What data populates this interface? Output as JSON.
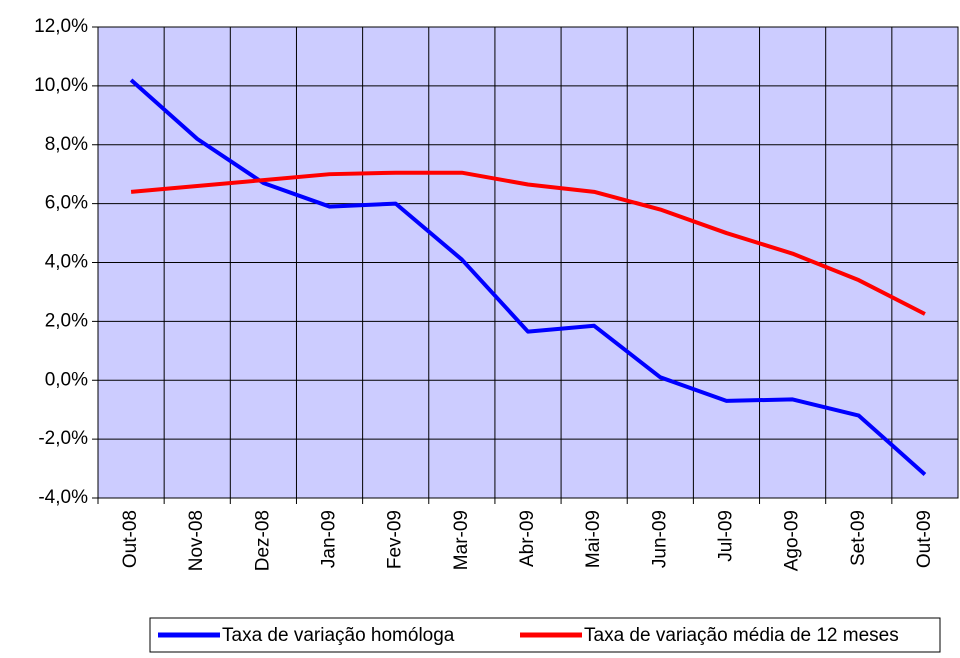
{
  "chart_data": {
    "type": "line",
    "categories": [
      "Out-08",
      "Nov-08",
      "Dez-08",
      "Jan-09",
      "Fev-09",
      "Mar-09",
      "Abr-09",
      "Mai-09",
      "Jun-09",
      "Jul-09",
      "Ago-09",
      "Set-09",
      "Out-09"
    ],
    "series": [
      {
        "name": "Taxa de variação homóloga",
        "color": "#0000ff",
        "values": [
          10.2,
          8.2,
          6.7,
          5.9,
          6.0,
          4.1,
          1.65,
          1.85,
          0.1,
          -0.7,
          -0.65,
          -1.2,
          -3.2
        ]
      },
      {
        "name": "Taxa de variação média de 12 meses",
        "color": "#ff0000",
        "values": [
          6.4,
          6.6,
          6.8,
          7.0,
          7.05,
          7.05,
          6.65,
          6.4,
          5.8,
          5.0,
          4.3,
          3.4,
          2.25
        ]
      }
    ],
    "ylim": [
      -4,
      12
    ],
    "yticks": [
      {
        "value": -4,
        "label": "-4,0%"
      },
      {
        "value": -2,
        "label": "-2,0%"
      },
      {
        "value": 0,
        "label": "0,0%"
      },
      {
        "value": 2,
        "label": "2,0%"
      },
      {
        "value": 4,
        "label": "4,0%"
      },
      {
        "value": 6,
        "label": "6,0%"
      },
      {
        "value": 8,
        "label": "8,0%"
      },
      {
        "value": 10,
        "label": "10,0%"
      },
      {
        "value": 12,
        "label": "12,0%"
      }
    ],
    "grid": true,
    "plot_background": "#ccccff",
    "legend": "bottom"
  }
}
